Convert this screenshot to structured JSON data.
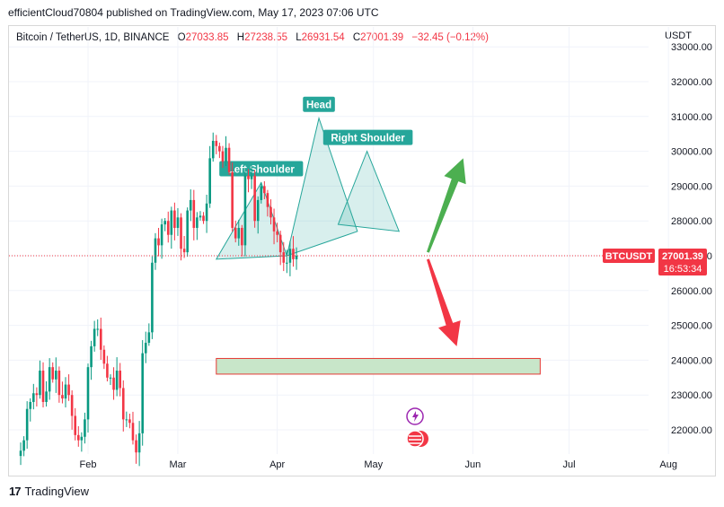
{
  "publisher_line": "efficientCloud70804 published on TradingView.com, May 17, 2023 07:06 UTC",
  "legend": {
    "symbol": "Bitcoin / TetherUS, 1D, BINANCE",
    "open_label": "O",
    "open": "27033.85",
    "high_label": "H",
    "high": "27238.55",
    "low_label": "L",
    "low": "26931.54",
    "close_label": "C",
    "close": "27001.39",
    "change": "−32.45 (−0.12%)"
  },
  "price_unit": "USDT",
  "ticker_label": "BTCUSDT",
  "last_price": "27001.39",
  "countdown": "16:53:34",
  "footer_brand": "TradingView",
  "colors": {
    "up": "#089981",
    "down": "#f23645",
    "pattern": "#26a69a",
    "zone_fill": "#c8e6c9",
    "zone_border": "#e53935",
    "arrow_up": "#4caf50",
    "arrow_down": "#f23645"
  },
  "chart_data": {
    "type": "candlestick",
    "y_ticks": [
      22000,
      23000,
      24000,
      25000,
      26000,
      27000,
      28000,
      29000,
      30000,
      31000,
      32000,
      33000
    ],
    "y_tick_labels": [
      "22000.00",
      "23000.00",
      "24000.00",
      "25000.00",
      "26000.00",
      "27000.00",
      "28000.00",
      "29000.00",
      "30000.00",
      "31000.00",
      "32000.00",
      "33000.00"
    ],
    "ylim": [
      21400,
      33300
    ],
    "x_labels": [
      "Feb",
      "Mar",
      "Apr",
      "May",
      "Jun",
      "Jul",
      "Aug"
    ],
    "x_label_days": [
      31,
      59,
      90,
      120,
      151,
      181,
      212
    ],
    "x_origin": "2023-01-01",
    "candles_start": "2023-01-11",
    "closes": [
      21400,
      21700,
      22600,
      22800,
      23050,
      23000,
      23700,
      22800,
      23100,
      23800,
      23450,
      23700,
      23000,
      22900,
      23300,
      23000,
      22400,
      21850,
      21700,
      21800,
      22300,
      23800,
      24400,
      24900,
      24900,
      24300,
      23900,
      23500,
      23500,
      23150,
      23700,
      23200,
      22300,
      22300,
      22200,
      21700,
      21350,
      21900,
      24200,
      24500,
      24800,
      26800,
      27500,
      27300,
      27900,
      28000,
      27600,
      28300,
      27800,
      28100,
      27200,
      27100,
      28300,
      28600,
      27800,
      28100,
      28150,
      28000,
      28500,
      29800,
      30300,
      30150,
      30000,
      29700,
      30100,
      29400,
      27800,
      27500,
      27800,
      27300,
      29300,
      29200,
      29300,
      28000,
      28600,
      29000,
      28800,
      28400,
      28100,
      27700,
      27600,
      27100,
      26800,
      26800,
      27200,
      26900,
      27001.39
    ],
    "patterns": [
      {
        "label": "Left Shoulder",
        "points": [
          [
            "2023-03-13",
            26900
          ],
          [
            "2023-03-27",
            29100
          ],
          [
            "2023-04-04",
            27000
          ]
        ]
      },
      {
        "label": "Head",
        "points": [
          [
            "2023-04-04",
            27000
          ],
          [
            "2023-04-14",
            30950
          ],
          [
            "2023-04-26",
            27700
          ]
        ]
      },
      {
        "label": "Right Shoulder",
        "points": [
          [
            "2023-04-20",
            27900
          ],
          [
            "2023-04-29",
            30000
          ],
          [
            "2023-05-09",
            27700
          ]
        ]
      }
    ],
    "zone": {
      "x0": "2023-03-13",
      "x1": "2023-06-22",
      "y0": 23600,
      "y1": 24050
    },
    "arrows": [
      {
        "from": [
          "2023-05-18",
          27100
        ],
        "to": [
          "2023-05-29",
          29800
        ],
        "direction": "up"
      },
      {
        "from": [
          "2023-05-18",
          26900
        ],
        "to": [
          "2023-05-27",
          24400
        ],
        "direction": "down"
      }
    ]
  }
}
